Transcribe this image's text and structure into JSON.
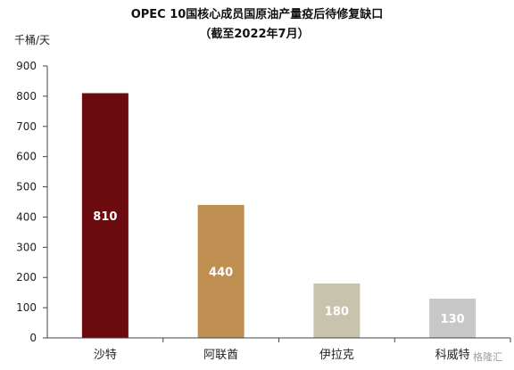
{
  "chart_data": {
    "type": "bar",
    "title": "OPEC 10国核心成员国原油产量疫后待修复缺口",
    "subtitle": "（截至2022年7月）",
    "ylabel": "千桶/天",
    "categories": [
      "沙特",
      "阿联酋",
      "伊拉克",
      "科威特"
    ],
    "values": [
      810,
      440,
      180,
      130
    ],
    "data_labels": [
      "810",
      "440",
      "180",
      "130"
    ],
    "ylim": [
      0,
      900
    ],
    "yticks": [
      0,
      100,
      200,
      300,
      400,
      500,
      600,
      700,
      800,
      900
    ],
    "ytick_labels": [
      "0",
      "100",
      "200",
      "300",
      "400",
      "500",
      "600",
      "700",
      "800",
      "900"
    ],
    "bar_colors": [
      "#6B0A0F",
      "#BF8F52",
      "#C7C3AD",
      "#C8C8C8"
    ],
    "grid": false,
    "legend": "none"
  },
  "watermark": {
    "text": "格隆汇"
  }
}
